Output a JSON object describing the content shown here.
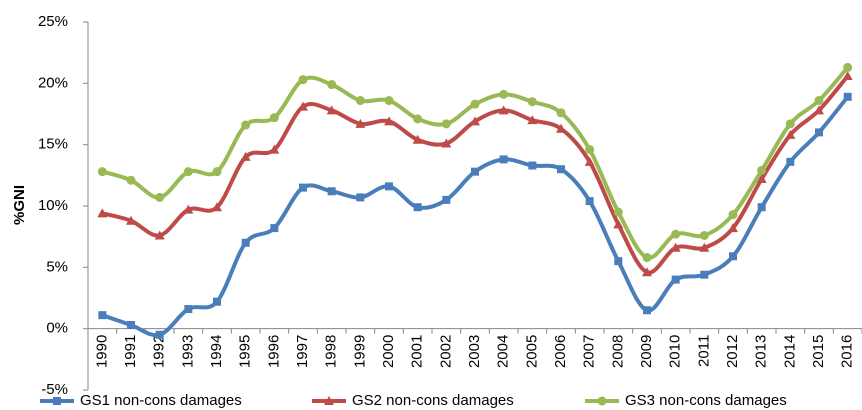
{
  "chart_data": {
    "type": "line",
    "y_label": "%GNI",
    "categories": [
      "1990",
      "1991",
      "1992",
      "1993",
      "1994",
      "1995",
      "1996",
      "1997",
      "1998",
      "1999",
      "2000",
      "2001",
      "2002",
      "2003",
      "2004",
      "2005",
      "2006",
      "2007",
      "2008",
      "2009",
      "2010",
      "2011",
      "2012",
      "2013",
      "2014",
      "2015",
      "2016"
    ],
    "series": [
      {
        "name": "GS1 non-cons damages",
        "color": "#4a7ebb",
        "marker": "square",
        "values": [
          1.1,
          0.3,
          -0.5,
          1.6,
          2.2,
          7.0,
          8.2,
          11.5,
          11.2,
          10.7,
          11.6,
          9.9,
          10.5,
          12.8,
          13.8,
          13.3,
          13.0,
          10.4,
          5.5,
          1.5,
          4.0,
          4.4,
          5.9,
          9.9,
          13.6,
          16.0,
          18.9
        ]
      },
      {
        "name": "GS2 non-cons damages",
        "color": "#be4b48",
        "marker": "triangle",
        "values": [
          9.4,
          8.8,
          7.6,
          9.7,
          9.9,
          14.0,
          14.6,
          18.1,
          17.8,
          16.7,
          16.9,
          15.4,
          15.1,
          16.9,
          17.8,
          17.0,
          16.3,
          13.6,
          8.5,
          4.6,
          6.6,
          6.6,
          8.2,
          12.2,
          15.8,
          17.8,
          20.6
        ]
      },
      {
        "name": "GS3 non-cons damages",
        "color": "#98b954",
        "marker": "circle",
        "values": [
          12.8,
          12.1,
          10.7,
          12.8,
          12.8,
          16.6,
          17.2,
          20.3,
          19.9,
          18.6,
          18.6,
          17.1,
          16.7,
          18.3,
          19.1,
          18.5,
          17.6,
          14.6,
          9.5,
          5.8,
          7.7,
          7.6,
          9.3,
          12.9,
          16.7,
          18.6,
          21.3
        ]
      }
    ],
    "ylim": [
      -5,
      25
    ],
    "yticks": [
      {
        "value": -5,
        "label": "-5%"
      },
      {
        "value": 0,
        "label": "0%"
      },
      {
        "value": 5,
        "label": "5%"
      },
      {
        "value": 10,
        "label": "10%"
      },
      {
        "value": 15,
        "label": "15%"
      },
      {
        "value": 20,
        "label": "20%"
      },
      {
        "value": 25,
        "label": "25%"
      }
    ],
    "grid": false,
    "legend": "bottom"
  }
}
